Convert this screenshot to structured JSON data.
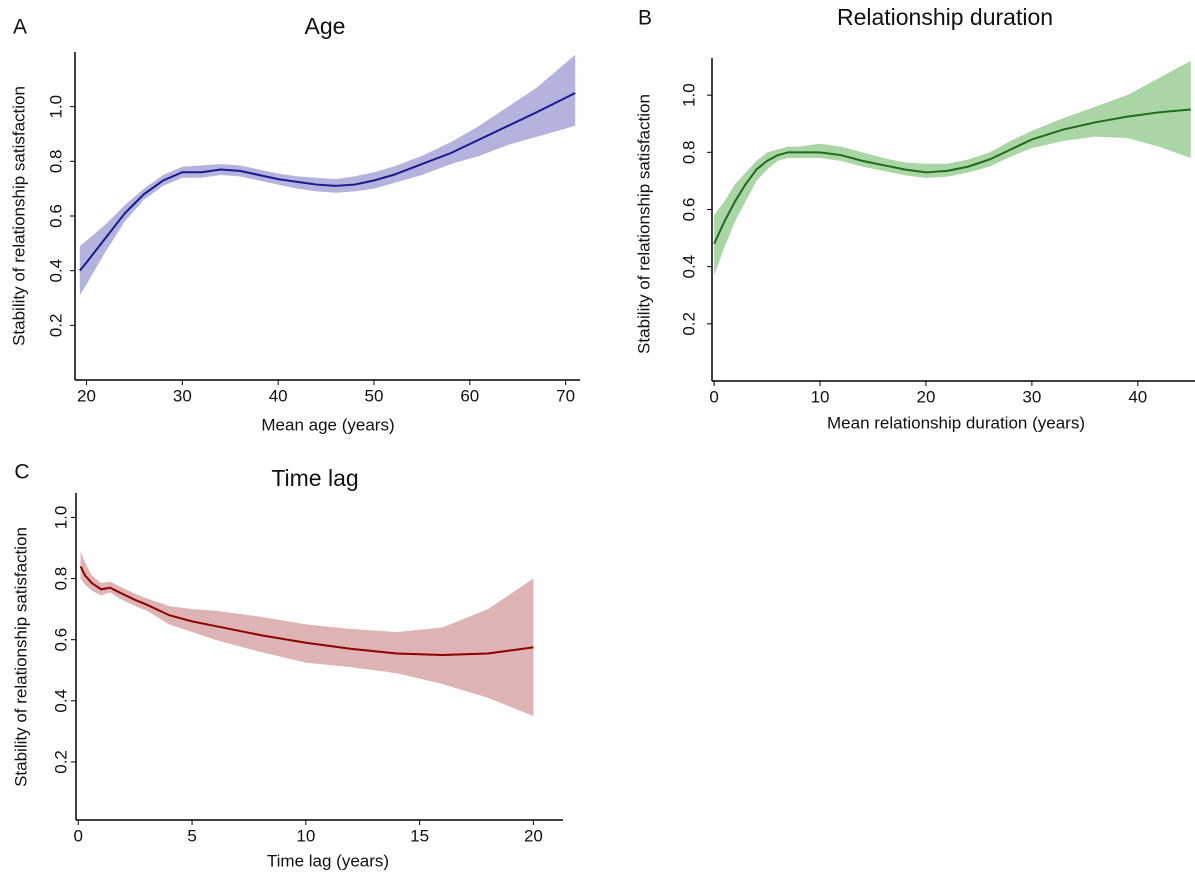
{
  "chart_data": [
    {
      "panel": "A",
      "type": "line",
      "title": "Age",
      "xlabel": "Mean age (years)",
      "ylabel": "Stability of relationship satisfaction",
      "xlim": [
        18.8,
        71.5
      ],
      "ylim": [
        0,
        1.2
      ],
      "xticks": [
        20,
        30,
        40,
        50,
        60,
        70
      ],
      "yticks": [
        0.2,
        0.4,
        0.6,
        0.8,
        {
          "value": 1,
          "label": "1.0"
        }
      ],
      "x": [
        19.3,
        20,
        22,
        24,
        26,
        28,
        30,
        32,
        34,
        36,
        38,
        40,
        42,
        44,
        46,
        48,
        50,
        52,
        55,
        58,
        61,
        64,
        67,
        71
      ],
      "series": [
        {
          "color": "#1a1a8c",
          "band_color": "#b3b3de",
          "values": [
            0.4,
            0.43,
            0.52,
            0.61,
            0.68,
            0.73,
            0.76,
            0.76,
            0.77,
            0.765,
            0.75,
            0.735,
            0.725,
            0.715,
            0.71,
            0.715,
            0.73,
            0.75,
            0.79,
            0.83,
            0.88,
            0.93,
            0.98,
            1.05
          ],
          "lower": [
            0.31,
            0.35,
            0.47,
            0.58,
            0.66,
            0.71,
            0.74,
            0.74,
            0.75,
            0.745,
            0.73,
            0.715,
            0.7,
            0.69,
            0.685,
            0.69,
            0.7,
            0.72,
            0.75,
            0.79,
            0.82,
            0.86,
            0.89,
            0.93
          ],
          "upper": [
            0.49,
            0.51,
            0.57,
            0.64,
            0.7,
            0.75,
            0.78,
            0.785,
            0.79,
            0.785,
            0.77,
            0.755,
            0.745,
            0.74,
            0.735,
            0.745,
            0.76,
            0.78,
            0.82,
            0.87,
            0.93,
            1.0,
            1.07,
            1.19
          ]
        }
      ]
    },
    {
      "panel": "B",
      "type": "line",
      "title": "Relationship duration",
      "xlabel": "Mean relationship duration (years)",
      "ylabel": "Stability of relationship satisfaction",
      "xlim": [
        -0.2,
        45.4
      ],
      "ylim": [
        0,
        1.13
      ],
      "xticks": [
        0,
        10,
        20,
        30,
        40
      ],
      "yticks": [
        0.2,
        0.4,
        0.6,
        0.8,
        {
          "value": 1,
          "label": "1.0"
        }
      ],
      "x": [
        0,
        1,
        2,
        3,
        4,
        5,
        6,
        7,
        8,
        10,
        12,
        14,
        16,
        18,
        20,
        22,
        24,
        26,
        28,
        30,
        33,
        36,
        39,
        42,
        45
      ],
      "series": [
        {
          "color": "#1e6b1e",
          "band_color": "#aad5a5",
          "values": [
            0.48,
            0.56,
            0.63,
            0.69,
            0.74,
            0.77,
            0.79,
            0.8,
            0.8,
            0.8,
            0.79,
            0.77,
            0.755,
            0.74,
            0.73,
            0.735,
            0.75,
            0.775,
            0.81,
            0.845,
            0.88,
            0.905,
            0.925,
            0.94,
            0.95
          ],
          "lower": [
            0.37,
            0.47,
            0.56,
            0.63,
            0.7,
            0.74,
            0.77,
            0.78,
            0.78,
            0.78,
            0.77,
            0.75,
            0.735,
            0.72,
            0.71,
            0.715,
            0.73,
            0.75,
            0.785,
            0.815,
            0.84,
            0.855,
            0.85,
            0.82,
            0.78
          ],
          "upper": [
            0.58,
            0.63,
            0.69,
            0.73,
            0.77,
            0.8,
            0.81,
            0.82,
            0.82,
            0.83,
            0.82,
            0.8,
            0.78,
            0.765,
            0.76,
            0.76,
            0.775,
            0.8,
            0.84,
            0.875,
            0.92,
            0.96,
            1.0,
            1.06,
            1.12
          ]
        }
      ]
    },
    {
      "panel": "C",
      "type": "line",
      "title": "Time lag",
      "xlabel": "Time lag (years)",
      "ylabel": "Stability of relationship satisfaction",
      "xlim": [
        -0.1,
        21.3
      ],
      "ylim": [
        0.01,
        1.08
      ],
      "xticks": [
        0,
        5,
        10,
        15,
        20
      ],
      "yticks": [
        0.2,
        0.4,
        0.6,
        0.8,
        {
          "value": 1,
          "label": "1.0"
        }
      ],
      "x": [
        0.1,
        0.3,
        0.6,
        1.0,
        1.4,
        1.8,
        2.5,
        3,
        4,
        5,
        6,
        8,
        10,
        12,
        14,
        16,
        18,
        20
      ],
      "series": [
        {
          "color": "#8b0000",
          "band_color": "#deb3b3",
          "values": [
            0.84,
            0.81,
            0.785,
            0.765,
            0.77,
            0.755,
            0.73,
            0.715,
            0.68,
            0.66,
            0.645,
            0.615,
            0.59,
            0.57,
            0.555,
            0.55,
            0.555,
            0.575
          ],
          "lower": [
            0.8,
            0.78,
            0.76,
            0.745,
            0.755,
            0.735,
            0.71,
            0.695,
            0.65,
            0.625,
            0.6,
            0.56,
            0.525,
            0.51,
            0.49,
            0.455,
            0.41,
            0.35
          ],
          "upper": [
            0.89,
            0.85,
            0.81,
            0.785,
            0.79,
            0.775,
            0.75,
            0.735,
            0.71,
            0.7,
            0.695,
            0.675,
            0.65,
            0.635,
            0.625,
            0.64,
            0.7,
            0.8
          ]
        }
      ]
    }
  ]
}
